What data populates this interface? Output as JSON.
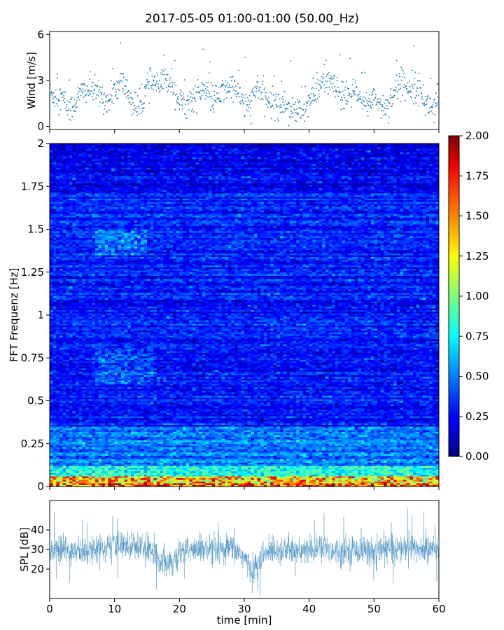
{
  "title": "2017-05-05 01:00-01:00 (50.00_Hz)",
  "chart_data": [
    {
      "id": "wind",
      "type": "scatter",
      "ylabel": "Wind [m/s]",
      "xlim": [
        0,
        60
      ],
      "ylim": [
        -0.2,
        6.2
      ],
      "yticks": [
        0,
        3,
        6
      ],
      "ytick_labels": [
        "0",
        "3",
        "6"
      ],
      "color": "#1f77b4",
      "series": [
        {
          "x_range": [
            0,
            60
          ],
          "points": 1000,
          "approx_profile": [
            [
              0,
              2.1
            ],
            [
              2,
              1.9
            ],
            [
              3,
              1.0
            ],
            [
              4,
              1.6
            ],
            [
              5,
              2.3
            ],
            [
              6,
              2.4
            ],
            [
              7,
              2.3
            ],
            [
              8,
              2.0
            ],
            [
              9,
              1.6
            ],
            [
              10,
              2.1
            ],
            [
              11,
              3.0
            ],
            [
              12,
              2.3
            ],
            [
              13,
              1.4
            ],
            [
              14,
              1.1
            ],
            [
              15,
              2.6
            ],
            [
              16,
              2.8
            ],
            [
              17,
              2.6
            ],
            [
              18,
              3.1
            ],
            [
              19,
              2.8
            ],
            [
              20,
              1.6
            ],
            [
              21,
              1.5
            ],
            [
              22,
              1.8
            ],
            [
              23,
              2.2
            ],
            [
              24,
              2.4
            ],
            [
              25,
              1.7
            ],
            [
              26,
              1.9
            ],
            [
              27,
              2.4
            ],
            [
              28,
              2.6
            ],
            [
              29,
              2.3
            ],
            [
              30,
              1.4
            ],
            [
              31,
              1.4
            ],
            [
              32,
              2.7
            ],
            [
              33,
              1.9
            ],
            [
              34,
              1.6
            ],
            [
              35,
              1.5
            ],
            [
              36,
              1.5
            ],
            [
              37,
              1.3
            ],
            [
              38,
              1.0
            ],
            [
              39,
              0.9
            ],
            [
              40,
              1.7
            ],
            [
              41,
              2.1
            ],
            [
              42,
              2.9
            ],
            [
              43,
              2.9
            ],
            [
              44,
              2.5
            ],
            [
              45,
              2.0
            ],
            [
              46,
              1.9
            ],
            [
              47,
              2.3
            ],
            [
              48,
              1.6
            ],
            [
              49,
              1.4
            ],
            [
              50,
              2.1
            ],
            [
              51,
              1.3
            ],
            [
              52,
              1.3
            ],
            [
              53,
              2.1
            ],
            [
              54,
              3.0
            ],
            [
              55,
              2.6
            ],
            [
              56,
              2.6
            ],
            [
              57,
              2.5
            ],
            [
              58,
              1.5
            ],
            [
              59,
              1.3
            ],
            [
              60,
              2.0
            ]
          ]
        }
      ]
    },
    {
      "id": "spectrogram",
      "type": "heatmap",
      "ylabel": "FFT Frequenz [Hz]",
      "xlim": [
        0,
        60
      ],
      "ylim": [
        0,
        2
      ],
      "yticks": [
        0,
        0.25,
        0.5,
        0.75,
        1,
        1.25,
        1.5,
        1.75,
        2
      ],
      "ytick_labels": [
        "0",
        "0.25",
        "0.5",
        "0.75",
        "1",
        "1.25",
        "1.5",
        "1.75",
        "2"
      ],
      "colormap": "jet",
      "clim": [
        0,
        2
      ],
      "colorbar_ticks": [
        0,
        0.25,
        0.5,
        0.75,
        1,
        1.25,
        1.5,
        1.75,
        2
      ],
      "colorbar_tick_labels": [
        "0.00",
        "0.25",
        "0.50",
        "0.75",
        "1.00",
        "1.25",
        "1.50",
        "1.75",
        "2.00"
      ],
      "time_bins": 120,
      "freq_bins": 200,
      "background_level": 0.3,
      "low_freq_peak_level": 1.6,
      "notes": "mostly 0.1-0.6 magnitude; strong values (up to 2.0) below ~0.05 Hz; brighter band near 0.6-0.8 Hz and 1.35-1.5 Hz around 10-15 min"
    },
    {
      "id": "spl",
      "type": "line",
      "ylabel": "SPL [dB]",
      "xlabel": "time [min]",
      "xlim": [
        0,
        60
      ],
      "ylim": [
        5,
        55
      ],
      "yticks": [
        20,
        30,
        40
      ],
      "ytick_labels": [
        "20",
        "30",
        "40"
      ],
      "xticks": [
        0,
        10,
        20,
        30,
        40,
        50,
        60
      ],
      "xtick_labels": [
        "0",
        "10",
        "20",
        "30",
        "40",
        "50",
        "60"
      ],
      "color": "#1f77b4",
      "series": [
        {
          "x_range": [
            0,
            60
          ],
          "points": 1800,
          "approx_profile": [
            [
              0,
              30
            ],
            [
              5,
              29
            ],
            [
              8,
              31
            ],
            [
              10,
              32
            ],
            [
              13,
              32
            ],
            [
              15,
              31
            ],
            [
              17,
              25
            ],
            [
              19,
              24
            ],
            [
              21,
              30
            ],
            [
              23,
              30
            ],
            [
              25,
              29
            ],
            [
              27,
              29
            ],
            [
              28,
              31
            ],
            [
              30,
              26
            ],
            [
              31,
              19
            ],
            [
              32,
              22
            ],
            [
              34,
              30
            ],
            [
              36,
              30
            ],
            [
              38,
              29
            ],
            [
              40,
              29
            ],
            [
              42,
              31
            ],
            [
              45,
              29
            ],
            [
              48,
              30
            ],
            [
              50,
              29
            ],
            [
              52,
              30
            ],
            [
              55,
              31
            ],
            [
              58,
              30
            ],
            [
              60,
              30
            ]
          ]
        }
      ]
    }
  ]
}
